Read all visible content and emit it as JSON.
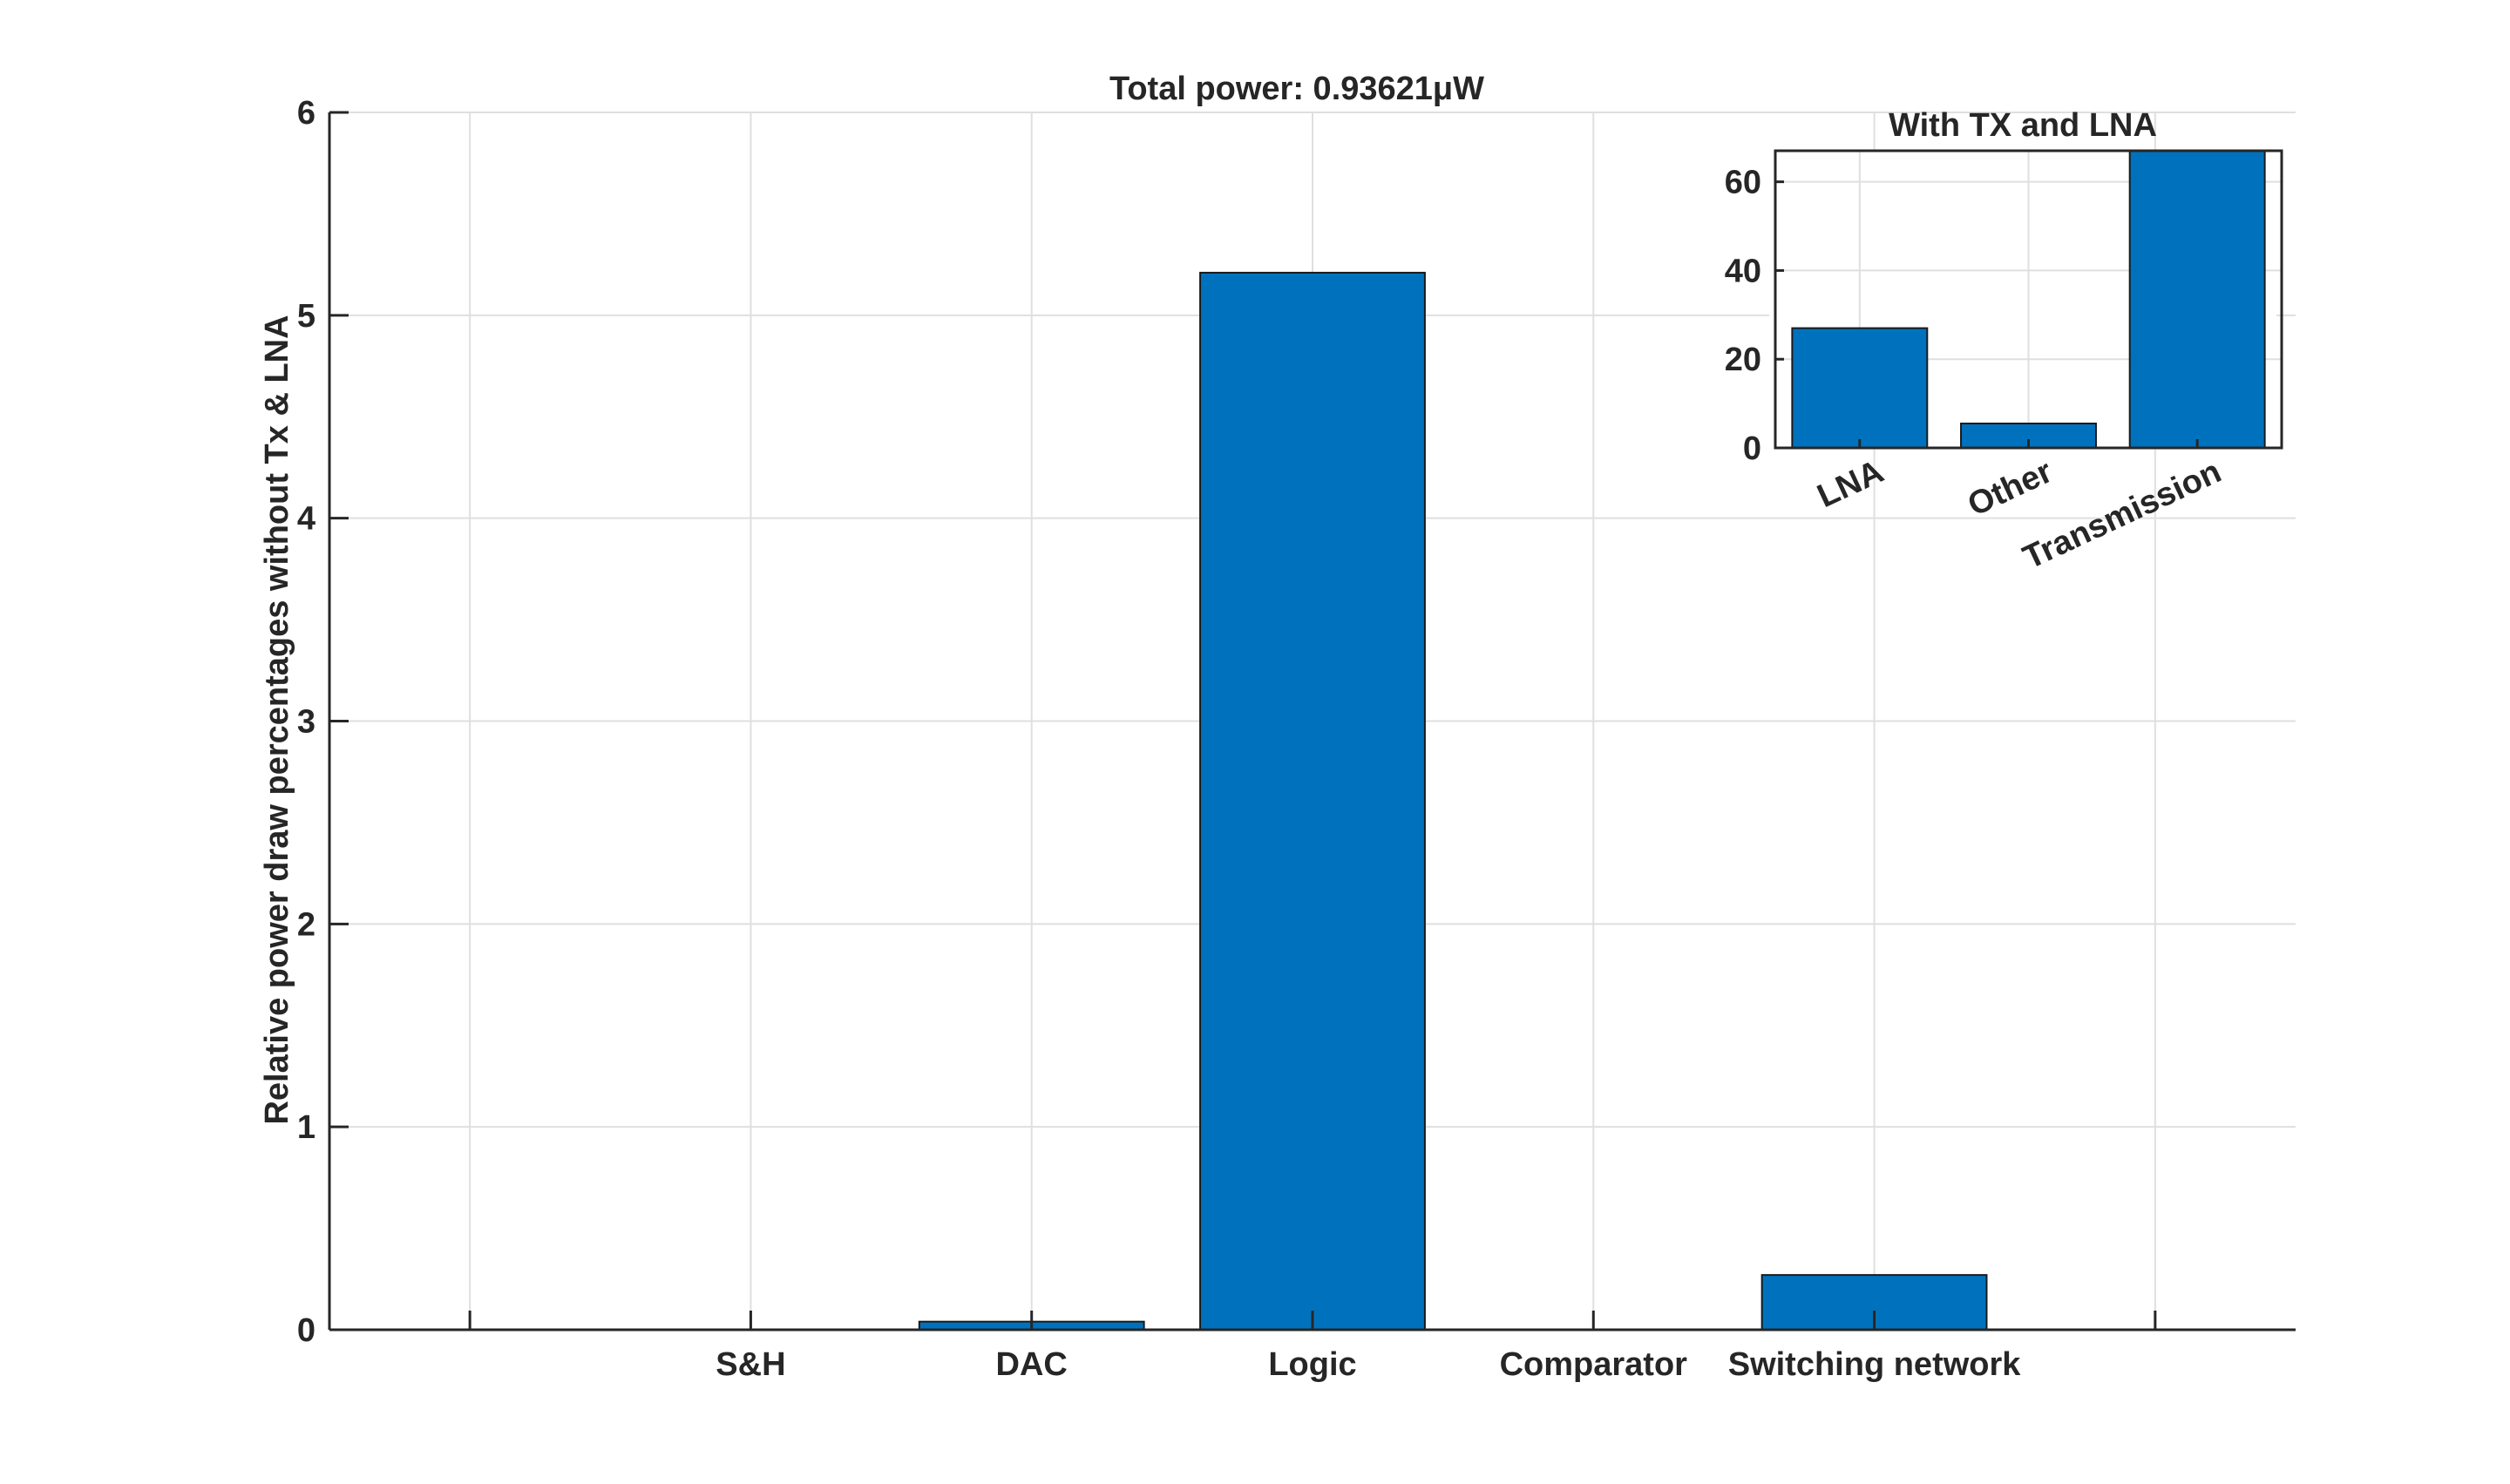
{
  "chart_data": [
    {
      "type": "bar",
      "title": "Total power: 0.93621μW",
      "xlabel": "",
      "ylabel": "Relative power draw percentages without Tx & LNA",
      "categories": [
        "",
        "S&H",
        "DAC",
        "Logic",
        "Comparator",
        "Switching network",
        ""
      ],
      "values": [
        0,
        0,
        0.04,
        5.21,
        0,
        0.27,
        0
      ],
      "ylim": [
        0,
        6
      ],
      "yticks": [
        0,
        1,
        2,
        3,
        4,
        5,
        6
      ],
      "grid": true,
      "bar_color": "#0072BD"
    },
    {
      "type": "bar",
      "title": "With TX and LNA",
      "xlabel": "",
      "ylabel": "",
      "categories": [
        "LNA",
        "Other",
        "Transmission"
      ],
      "values": [
        27,
        5.5,
        67.5
      ],
      "ylim": [
        0,
        67
      ],
      "yticks": [
        0,
        20,
        40,
        60
      ],
      "grid": true,
      "bar_color": "#0072BD"
    }
  ]
}
